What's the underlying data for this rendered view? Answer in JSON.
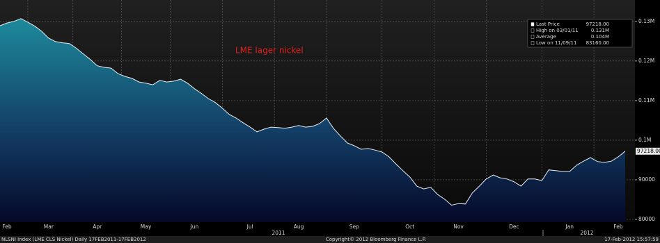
{
  "chart_data": {
    "type": "area",
    "annotation": "LME lager nickel",
    "categories": [
      null,
      "Feb",
      null,
      null,
      null,
      null,
      null,
      "Mar",
      null,
      null,
      null,
      null,
      null,
      null,
      "Apr",
      null,
      null,
      null,
      null,
      null,
      null,
      "May",
      null,
      null,
      null,
      null,
      null,
      null,
      "Jun",
      null,
      null,
      null,
      null,
      null,
      null,
      null,
      "Jul",
      null,
      null,
      null,
      null,
      null,
      null,
      "Aug",
      null,
      null,
      null,
      null,
      null,
      null,
      null,
      "Sep",
      null,
      null,
      null,
      null,
      null,
      null,
      null,
      "Oct",
      null,
      null,
      null,
      null,
      null,
      null,
      "Nov",
      null,
      null,
      null,
      null,
      null,
      null,
      null,
      "Dec",
      null,
      null,
      null,
      null,
      null,
      null,
      null,
      "Jan",
      null,
      null,
      null,
      null,
      null,
      null,
      "Feb",
      null
    ],
    "year_labels": [
      "2011",
      "2012"
    ],
    "series": [
      {
        "name": "LME CLS Nickel",
        "color": "#e8eef2",
        "values": [
          128900,
          129600,
          130000,
          130700,
          129800,
          128800,
          127500,
          125800,
          124900,
          124600,
          124400,
          123200,
          121800,
          120400,
          118800,
          118400,
          118200,
          116800,
          116100,
          115600,
          114700,
          114400,
          114000,
          115100,
          114700,
          114900,
          115400,
          114400,
          113000,
          111800,
          110500,
          109500,
          108100,
          106500,
          105600,
          104400,
          103300,
          102100,
          102800,
          103300,
          103200,
          103000,
          103300,
          103700,
          103300,
          103500,
          104200,
          105600,
          103000,
          101100,
          99300,
          98600,
          97700,
          97900,
          97500,
          97000,
          95800,
          94000,
          92300,
          90700,
          88400,
          87700,
          88100,
          86300,
          85100,
          83600,
          84000,
          83900,
          86700,
          88400,
          90200,
          91200,
          90500,
          90200,
          89500,
          88400,
          90200,
          90200,
          89800,
          92500,
          92300,
          92100,
          92100,
          93700,
          94700,
          95600,
          94600,
          94400,
          94700,
          95800,
          97218
        ]
      }
    ],
    "last_label": "97218.00",
    "ylim": [
      79300,
      135400
    ],
    "yticks": [
      {
        "value": 130000,
        "label": "0.13M"
      },
      {
        "value": 120000,
        "label": "0.12M"
      },
      {
        "value": 110000,
        "label": "0.11M"
      },
      {
        "value": 100000,
        "label": "0.1M"
      },
      90000,
      80000
    ],
    "grid": true,
    "legend_box": [
      {
        "label": "Last Price",
        "value": "97218.00"
      },
      {
        "label": "High on 03/01/11",
        "value": "0.131M"
      },
      {
        "label": "Average",
        "value": "0.104M"
      },
      {
        "label": "Low on 11/09/11",
        "value": "83160.00"
      }
    ],
    "footer": {
      "left": "NLSNI Index (LME CLS Nickel)  Daily 17FEB2011-17FEB2012",
      "center": "Copyright© 2012 Bloomberg Finance L.P.",
      "right": "17-Feb-2012 15:57:59"
    }
  }
}
